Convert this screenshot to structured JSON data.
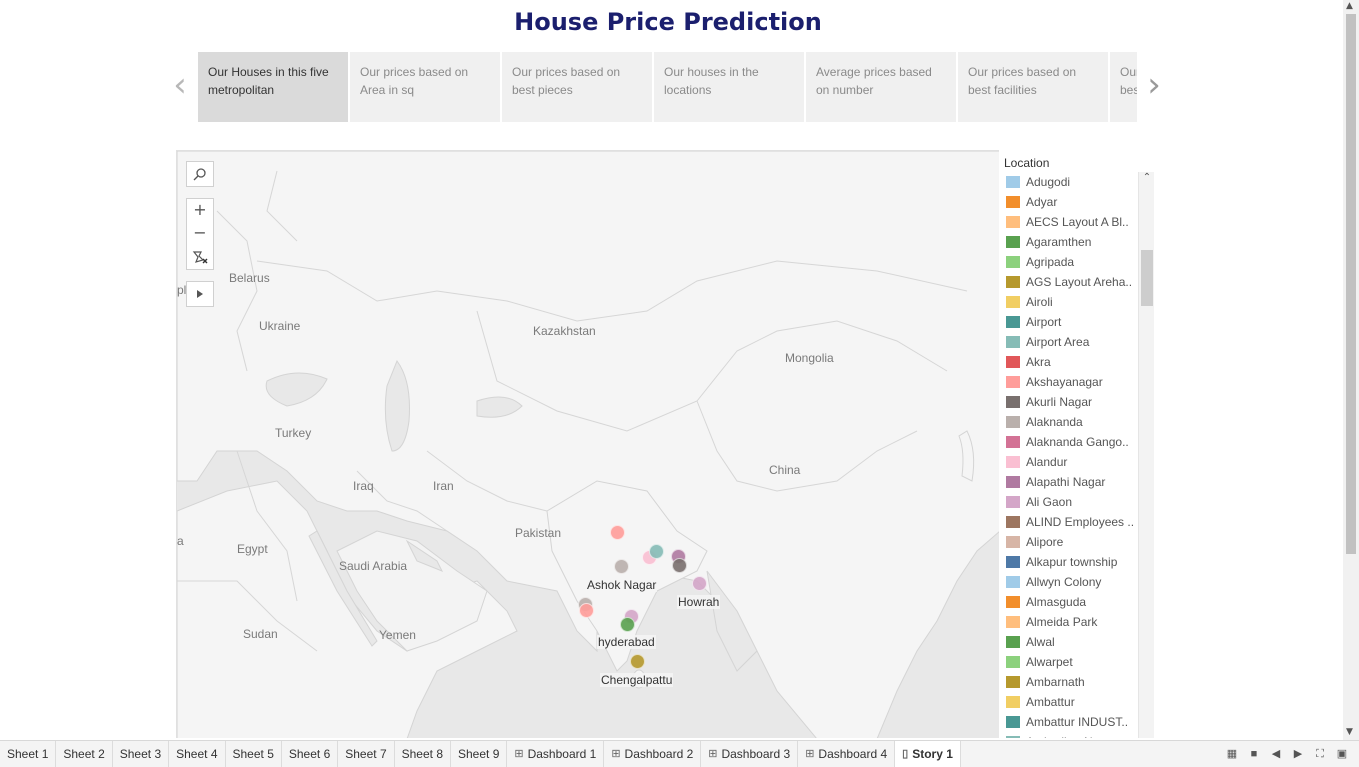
{
  "title": "House Price Prediction",
  "story": {
    "prev_icon": "chevron-left-icon",
    "next_icon": "chevron-right-icon",
    "points": [
      {
        "label": "Our Houses in this five metropolitan",
        "active": true
      },
      {
        "label": "Our prices based on Area in sq",
        "active": false
      },
      {
        "label": "Our prices based on best pieces",
        "active": false
      },
      {
        "label": "Our houses in the locations",
        "active": false
      },
      {
        "label": "Average prices based on number",
        "active": false
      },
      {
        "label": "Our prices based on best facilities",
        "active": false
      },
      {
        "label": "Our prices based on best",
        "active": false
      }
    ]
  },
  "map": {
    "tools": {
      "search_icon": "search-icon",
      "zoom_in": "+",
      "zoom_out": "−",
      "reset_icon": "reset-map-icon",
      "play_icon": "play-icon"
    },
    "region_labels": [
      "Belarus",
      "Ukraine",
      "Kazakhstan",
      "Mongolia",
      "Turkey",
      "Iraq",
      "Iran",
      "China",
      "Pakistan",
      "Egypt",
      "Saudi Arabia",
      "Sudan",
      "Yemen",
      "pla",
      "a"
    ],
    "city_labels": [
      "Ashok Nagar",
      "Howrah",
      "hyderabad",
      "Chengalpattu"
    ]
  },
  "legend": {
    "title": "Location",
    "items": [
      {
        "label": "Adugodi",
        "color": "#a0cbe8"
      },
      {
        "label": "Adyar",
        "color": "#f28e2b"
      },
      {
        "label": "AECS Layout A Bl..",
        "color": "#ffbe7d"
      },
      {
        "label": "Agaramthen",
        "color": "#59a14f"
      },
      {
        "label": "Agripada",
        "color": "#8cd17d"
      },
      {
        "label": "AGS Layout Areha..",
        "color": "#b6992d"
      },
      {
        "label": "Airoli",
        "color": "#f1ce63"
      },
      {
        "label": "Airport",
        "color": "#499894"
      },
      {
        "label": "Airport Area",
        "color": "#86bcb6"
      },
      {
        "label": "Akra",
        "color": "#e15759"
      },
      {
        "label": "Akshayanagar",
        "color": "#ff9d9a"
      },
      {
        "label": "Akurli Nagar",
        "color": "#79706e"
      },
      {
        "label": "Alaknanda",
        "color": "#bab0ac"
      },
      {
        "label": "Alaknanda Gango..",
        "color": "#d37295"
      },
      {
        "label": "Alandur",
        "color": "#fabfd2"
      },
      {
        "label": "Alapathi Nagar",
        "color": "#b07aa1"
      },
      {
        "label": "Ali Gaon",
        "color": "#d4a6c8"
      },
      {
        "label": "ALIND Employees ..",
        "color": "#9d7660"
      },
      {
        "label": "Alipore",
        "color": "#d7b5a6"
      },
      {
        "label": "Alkapur township",
        "color": "#4e79a7"
      },
      {
        "label": "Allwyn Colony",
        "color": "#a0cbe8"
      },
      {
        "label": "Almasguda",
        "color": "#f28e2b"
      },
      {
        "label": "Almeida Park",
        "color": "#ffbe7d"
      },
      {
        "label": "Alwal",
        "color": "#59a14f"
      },
      {
        "label": "Alwarpet",
        "color": "#8cd17d"
      },
      {
        "label": "Ambarnath",
        "color": "#b6992d"
      },
      {
        "label": "Ambattur",
        "color": "#f1ce63"
      },
      {
        "label": "Ambattur INDUST..",
        "color": "#499894"
      },
      {
        "label": "Ambedkar Nagar",
        "color": "#86bcb6"
      }
    ]
  },
  "tabs": [
    {
      "label": "Sheet 1",
      "icon": "",
      "active": false
    },
    {
      "label": "Sheet 2",
      "icon": "",
      "active": false
    },
    {
      "label": "Sheet 3",
      "icon": "",
      "active": false
    },
    {
      "label": "Sheet 4",
      "icon": "",
      "active": false
    },
    {
      "label": "Sheet 5",
      "icon": "",
      "active": false
    },
    {
      "label": "Sheet 6",
      "icon": "",
      "active": false
    },
    {
      "label": "Sheet 7",
      "icon": "",
      "active": false
    },
    {
      "label": "Sheet 8",
      "icon": "",
      "active": false
    },
    {
      "label": "Sheet 9",
      "icon": "",
      "active": false
    },
    {
      "label": "Dashboard 1",
      "icon": "dashboard-icon",
      "active": false
    },
    {
      "label": "Dashboard 2",
      "icon": "dashboard-icon",
      "active": false
    },
    {
      "label": "Dashboard 3",
      "icon": "dashboard-icon",
      "active": false
    },
    {
      "label": "Dashboard 4",
      "icon": "dashboard-icon",
      "active": false
    },
    {
      "label": "Story 1",
      "icon": "story-icon",
      "active": true
    }
  ],
  "tab_controls": [
    "filmstrip-icon",
    "tabs-icon",
    "previous-icon",
    "next-icon",
    "fullscreen-icon",
    "presentation-icon"
  ]
}
